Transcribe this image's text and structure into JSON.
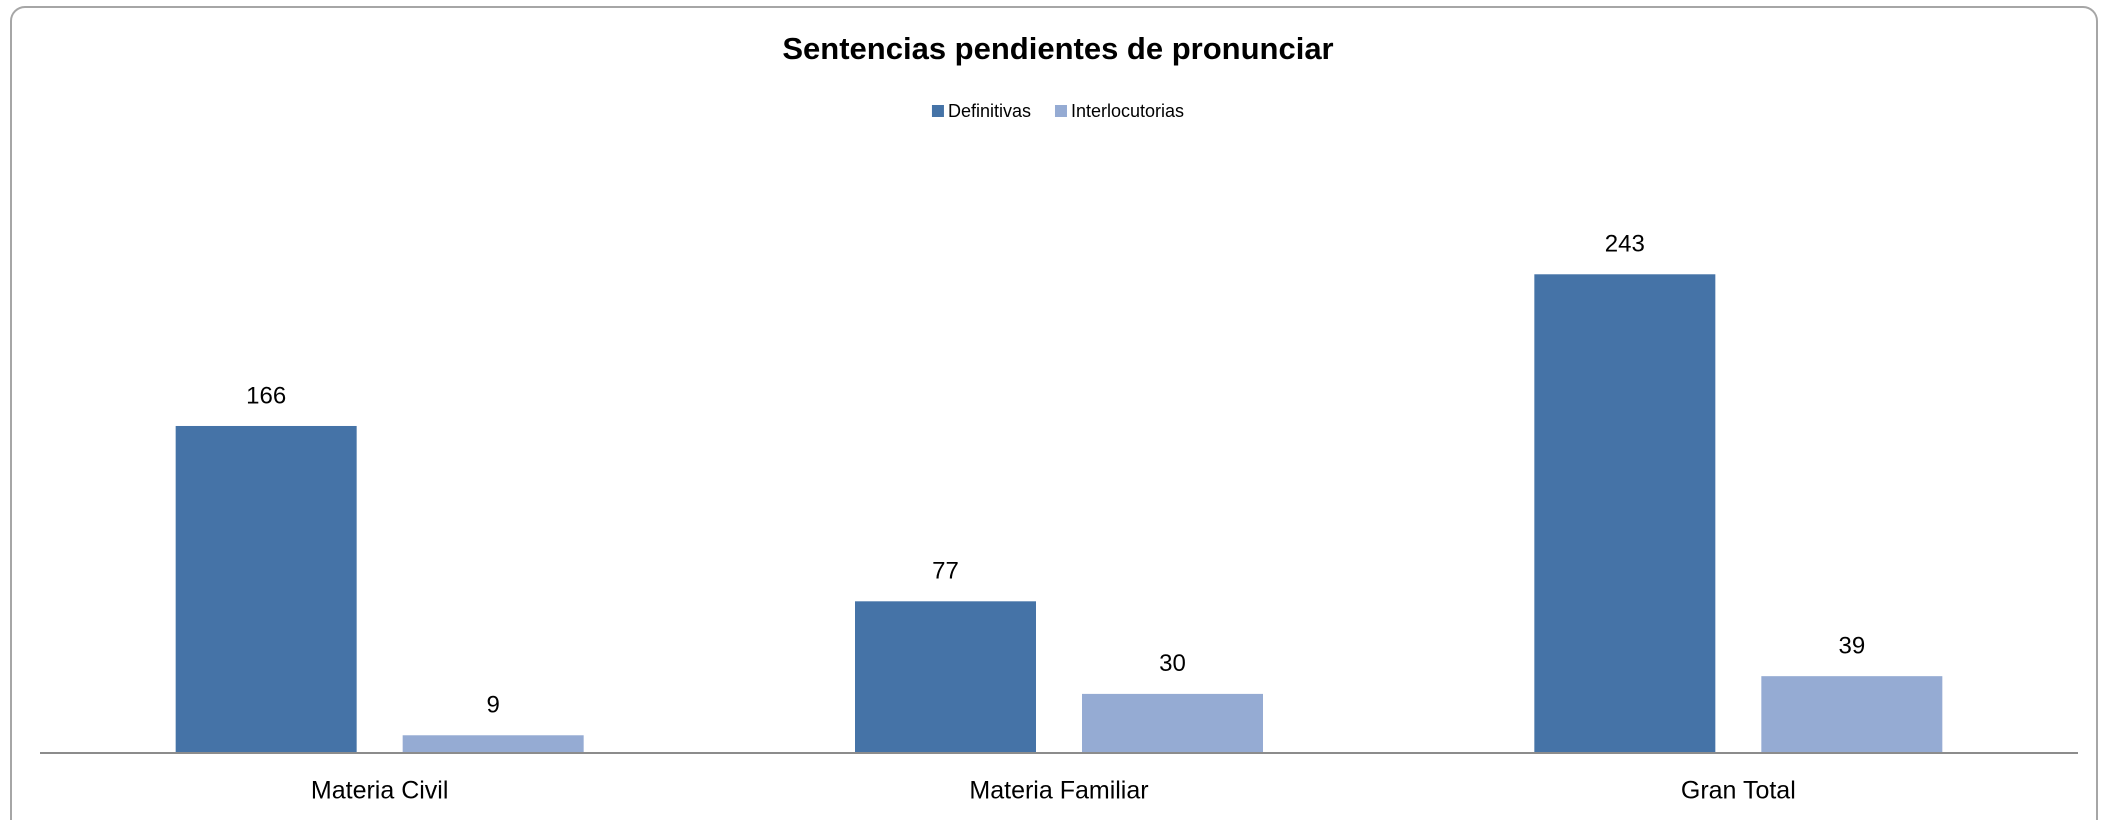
{
  "chart_data": {
    "type": "bar",
    "title": "Sentencias pendientes de pronunciar",
    "categories": [
      "Materia Civil",
      "Materia Familiar",
      "Gran Total"
    ],
    "series": [
      {
        "name": "Definitivas",
        "color": "#4573a7",
        "values": [
          166,
          77,
          243
        ]
      },
      {
        "name": "Interlocutorias",
        "color": "#95abd3",
        "values": [
          9,
          30,
          39
        ]
      }
    ],
    "ylim": [
      0,
      300
    ],
    "legend": "top"
  }
}
